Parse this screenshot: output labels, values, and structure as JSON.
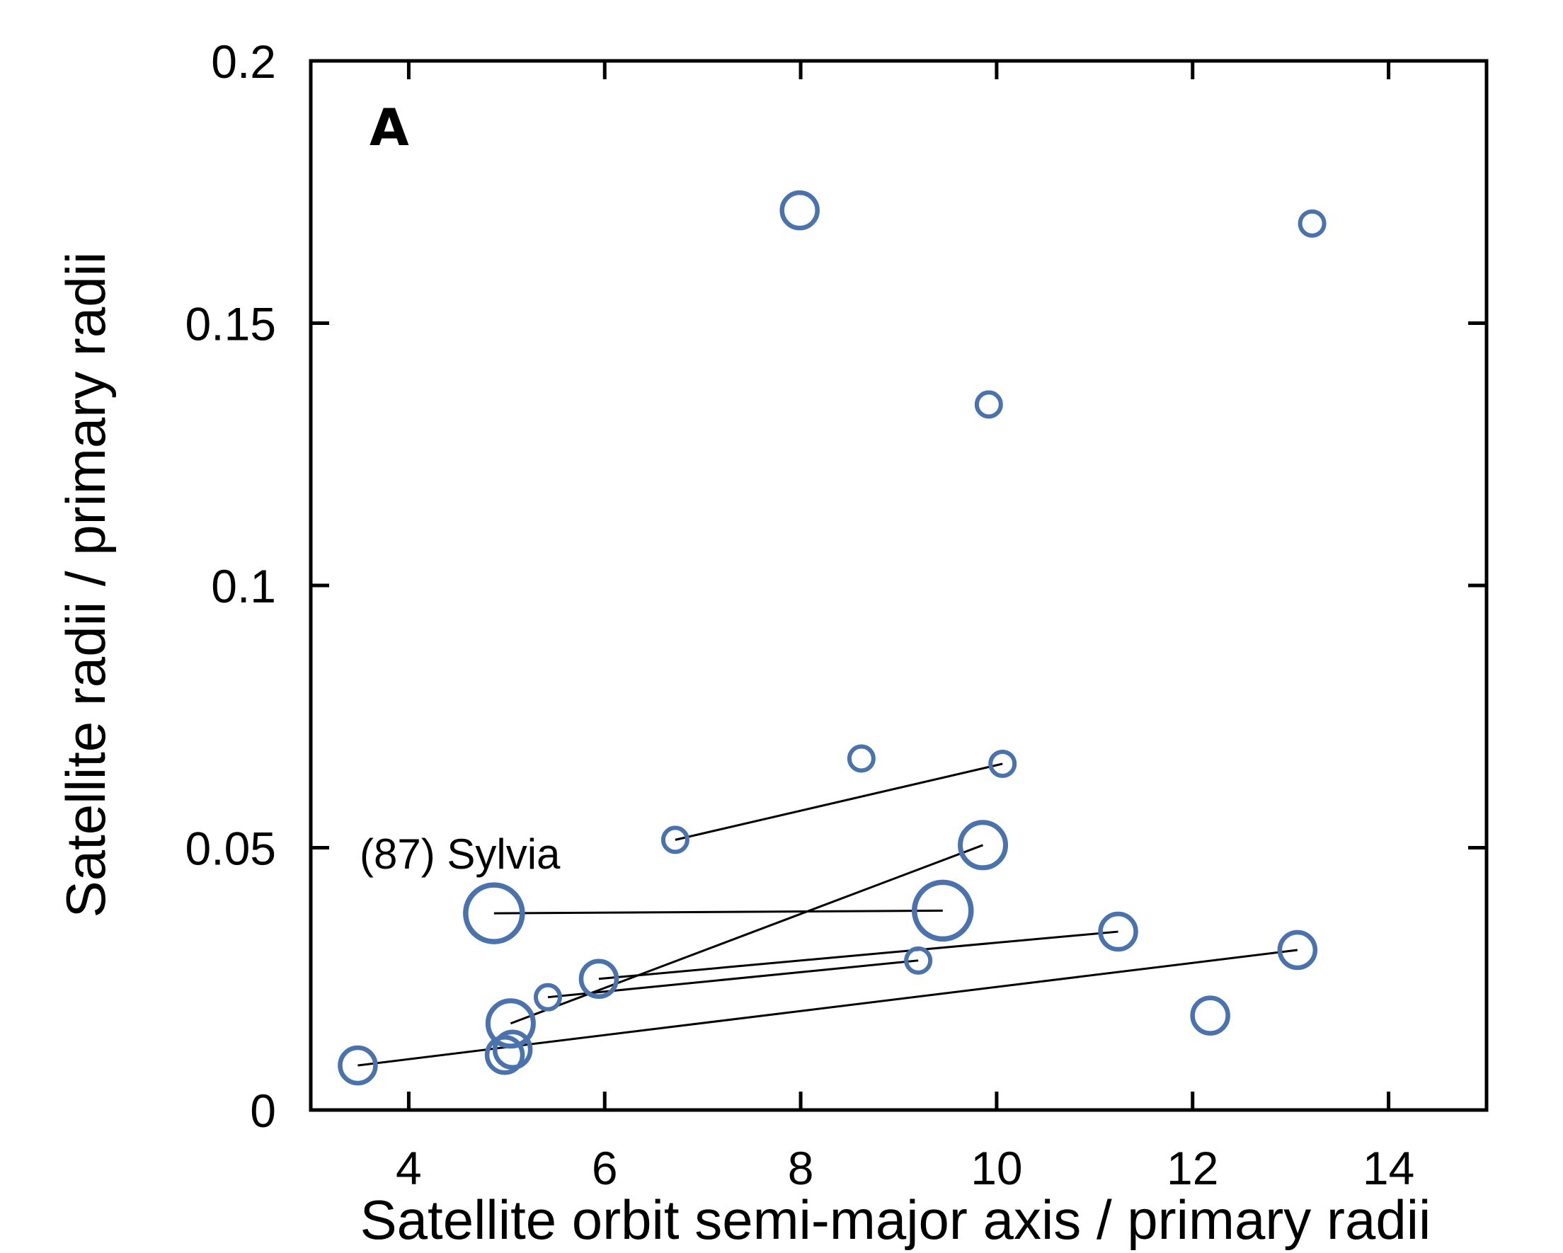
{
  "chart_data": {
    "type": "scatter",
    "panel_label": "A",
    "xlabel": "Satellite orbit semi-major axis / primary radii",
    "ylabel": "Satellite radii / primary radii",
    "xlim": [
      3.0,
      15.0
    ],
    "ylim": [
      0,
      0.2
    ],
    "xticks": [
      4,
      6,
      8,
      10,
      12,
      14
    ],
    "xtick_labels": [
      "4",
      "6",
      "8",
      "10",
      "12",
      "14"
    ],
    "yticks": [
      0,
      0.05,
      0.1,
      0.15,
      0.2
    ],
    "ytick_labels": [
      "0",
      "0.05",
      "0.1",
      "0.15",
      "0.2"
    ],
    "annotation": "(87) Sylvia",
    "marker_color": "#4a72ad",
    "points": [
      {
        "x": 7.99,
        "y": 0.1715,
        "size": "medium"
      },
      {
        "x": 13.22,
        "y": 0.169,
        "size": "small"
      },
      {
        "x": 9.92,
        "y": 0.1345,
        "size": "small"
      },
      {
        "x": 8.62,
        "y": 0.067,
        "size": "small"
      },
      {
        "x": 10.06,
        "y": 0.066,
        "size": "small"
      },
      {
        "x": 6.72,
        "y": 0.0515,
        "size": "small"
      },
      {
        "x": 9.86,
        "y": 0.0505,
        "size": "large"
      },
      {
        "x": 4.87,
        "y": 0.0375,
        "size": "xlarge"
      },
      {
        "x": 9.45,
        "y": 0.038,
        "size": "xlarge"
      },
      {
        "x": 11.24,
        "y": 0.034,
        "size": "medium"
      },
      {
        "x": 9.2,
        "y": 0.0285,
        "size": "small"
      },
      {
        "x": 13.07,
        "y": 0.0305,
        "size": "medium"
      },
      {
        "x": 5.94,
        "y": 0.025,
        "size": "medium"
      },
      {
        "x": 5.42,
        "y": 0.0215,
        "size": "small"
      },
      {
        "x": 5.04,
        "y": 0.0165,
        "size": "large"
      },
      {
        "x": 12.18,
        "y": 0.018,
        "size": "medium"
      },
      {
        "x": 5.06,
        "y": 0.0115,
        "size": "medium"
      },
      {
        "x": 4.98,
        "y": 0.0105,
        "size": "medium"
      },
      {
        "x": 3.48,
        "y": 0.0085,
        "size": "medium"
      }
    ],
    "links": [
      {
        "from": [
          6.72,
          0.0515
        ],
        "to": [
          10.06,
          0.066
        ]
      },
      {
        "from": [
          5.04,
          0.0165
        ],
        "to": [
          9.86,
          0.0505
        ]
      },
      {
        "from": [
          4.87,
          0.0375
        ],
        "to": [
          9.45,
          0.038
        ]
      },
      {
        "from": [
          5.94,
          0.025
        ],
        "to": [
          11.24,
          0.034
        ]
      },
      {
        "from": [
          5.42,
          0.0215
        ],
        "to": [
          9.2,
          0.0285
        ]
      },
      {
        "from": [
          3.48,
          0.0085
        ],
        "to": [
          13.07,
          0.0305
        ]
      }
    ]
  }
}
